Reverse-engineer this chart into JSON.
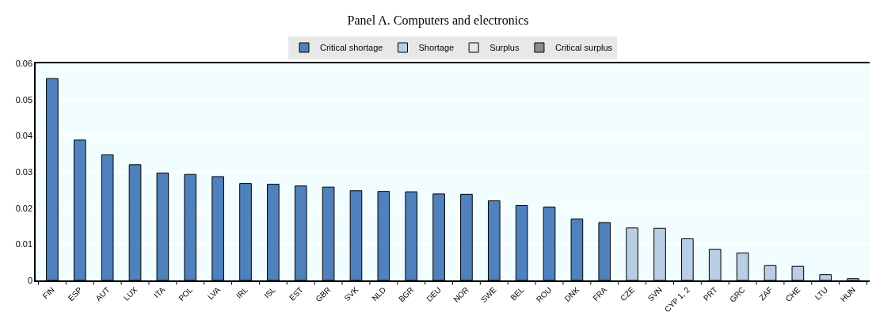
{
  "chart_data": {
    "type": "bar",
    "title": "Panel A. Computers and electronics",
    "categories": [
      "FIN",
      "ESP",
      "AUT",
      "LUX",
      "ITA",
      "POL",
      "LVA",
      "IRL",
      "ISL",
      "EST",
      "GBR",
      "SVK",
      "NLD",
      "BGR",
      "DEU",
      "NOR",
      "SWE",
      "BEL",
      "ROU",
      "DNK",
      "FRA",
      "CZE",
      "SVN",
      "CYP 1, 2",
      "PRT",
      "GRC",
      "ZAF",
      "CHE",
      "LTU",
      "HUN"
    ],
    "series": [
      {
        "name": "Critical shortage",
        "color": "#4f81bd",
        "values": [
          0.0558,
          0.0388,
          0.0347,
          0.032,
          0.0297,
          0.0293,
          0.0287,
          0.0268,
          0.0266,
          0.0261,
          0.0258,
          0.0248,
          0.0246,
          0.0245,
          0.0239,
          0.0238,
          0.022,
          0.0207,
          0.0203,
          0.017,
          0.016,
          null,
          null,
          null,
          null,
          null,
          null,
          null,
          null,
          null
        ]
      },
      {
        "name": "Shortage",
        "color": "#b9cde5",
        "values": [
          null,
          null,
          null,
          null,
          null,
          null,
          null,
          null,
          null,
          null,
          null,
          null,
          null,
          null,
          null,
          null,
          null,
          null,
          null,
          null,
          null,
          0.0145,
          0.0144,
          0.0115,
          0.0086,
          0.0076,
          0.0041,
          0.0039,
          0.0016,
          0.0005
        ]
      },
      {
        "name": "Surplus",
        "color": "#e6e6e6",
        "values": [
          null,
          null,
          null,
          null,
          null,
          null,
          null,
          null,
          null,
          null,
          null,
          null,
          null,
          null,
          null,
          null,
          null,
          null,
          null,
          null,
          null,
          null,
          null,
          null,
          null,
          null,
          null,
          null,
          null,
          null
        ]
      },
      {
        "name": "Critical surplus",
        "color": "#8c8c8c",
        "values": [
          null,
          null,
          null,
          null,
          null,
          null,
          null,
          null,
          null,
          null,
          null,
          null,
          null,
          null,
          null,
          null,
          null,
          null,
          null,
          null,
          null,
          null,
          null,
          null,
          null,
          null,
          null,
          null,
          null,
          null
        ]
      }
    ],
    "stacked": true,
    "ylim": [
      0,
      0.06
    ],
    "yticks": [
      0,
      0.01,
      0.02,
      0.03,
      0.04,
      0.05,
      0.06
    ],
    "grid": "y",
    "legend": "top"
  }
}
